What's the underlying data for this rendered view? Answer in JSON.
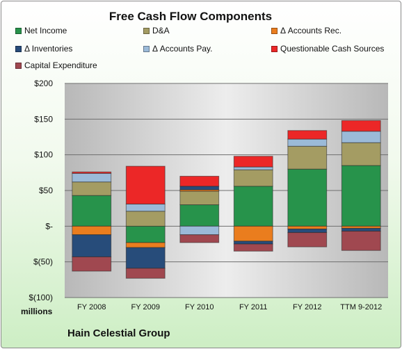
{
  "chart_data": {
    "type": "bar",
    "stacked": true,
    "title": "Free Cash Flow Components",
    "categories": [
      "FY 2008",
      "FY 2009",
      "FY 2010",
      "FY 2011",
      "FY 2012",
      "TTM 9-2012"
    ],
    "ylim": [
      -100,
      200
    ],
    "yticks": [
      200,
      150,
      100,
      50,
      0,
      -50,
      -100
    ],
    "ytick_labels": [
      "$200",
      "$150",
      "$100",
      "$50",
      "$-",
      "$(50)",
      "$(100)"
    ],
    "units_label": "millions",
    "grid": true,
    "legend_position": "top",
    "series": [
      {
        "name": "Net Income",
        "color": "#27934b",
        "values": [
          43,
          -23,
          30,
          56,
          80,
          85
        ]
      },
      {
        "name": "D&A",
        "color": "#a49c63",
        "values": [
          19,
          21,
          19,
          23,
          32,
          32
        ]
      },
      {
        "name": "Δ Accounts Rec.",
        "color": "#ea7d1e",
        "values": [
          -12,
          -7,
          2,
          -21,
          -4,
          -3
        ]
      },
      {
        "name": "Δ Inventories",
        "color": "#274c7a",
        "values": [
          -31,
          -29,
          5,
          -4,
          -5,
          -4
        ]
      },
      {
        "name": "Δ Accounts Pay.",
        "color": "#9bbad8",
        "values": [
          12,
          10,
          -12,
          4,
          10,
          16
        ]
      },
      {
        "name": "Questionable Cash Sources",
        "color": "#ec2727",
        "values": [
          2,
          53,
          14,
          15,
          12,
          15
        ]
      },
      {
        "name": "Capital Expenditure",
        "color": "#a04850",
        "values": [
          -20,
          -14,
          -11,
          -10,
          -20,
          -27
        ]
      }
    ]
  },
  "footer": {
    "company": "Hain Celestial Group"
  }
}
